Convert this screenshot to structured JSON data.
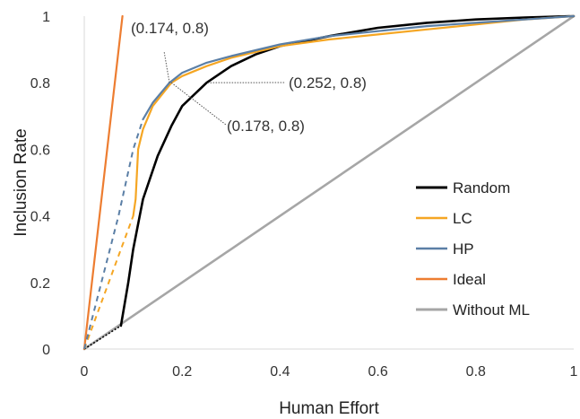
{
  "chart_data": {
    "type": "line",
    "title": "",
    "xlabel": "Human Effort",
    "ylabel": "Inclusion Rate",
    "xlim": [
      0,
      1
    ],
    "ylim": [
      0,
      1
    ],
    "x_ticks": [
      "0",
      "0.2",
      "0.4",
      "0.6",
      "0.8",
      "1"
    ],
    "y_ticks": [
      "0",
      "0.2",
      "0.4",
      "0.6",
      "0.8",
      "1"
    ],
    "grid": false,
    "legend_position": "lower-right",
    "series": [
      {
        "name": "Random",
        "color": "#000000",
        "dashed_segment": [
          [
            0.0,
            0.0
          ],
          [
            0.075,
            0.07
          ]
        ],
        "points": [
          [
            0.075,
            0.07
          ],
          [
            0.09,
            0.2
          ],
          [
            0.1,
            0.3
          ],
          [
            0.12,
            0.45
          ],
          [
            0.15,
            0.58
          ],
          [
            0.178,
            0.67
          ],
          [
            0.2,
            0.73
          ],
          [
            0.25,
            0.8
          ],
          [
            0.3,
            0.85
          ],
          [
            0.35,
            0.885
          ],
          [
            0.4,
            0.91
          ],
          [
            0.5,
            0.94
          ],
          [
            0.6,
            0.965
          ],
          [
            0.7,
            0.98
          ],
          [
            0.8,
            0.99
          ],
          [
            0.9,
            0.996
          ],
          [
            1.0,
            1.0
          ]
        ]
      },
      {
        "name": "LC",
        "color": "#F5A623",
        "dashed_segment": [
          [
            0.0,
            0.0
          ],
          [
            0.1,
            0.4
          ]
        ],
        "points": [
          [
            0.1,
            0.4
          ],
          [
            0.105,
            0.45
          ],
          [
            0.11,
            0.6
          ],
          [
            0.12,
            0.66
          ],
          [
            0.14,
            0.73
          ],
          [
            0.178,
            0.8
          ],
          [
            0.2,
            0.82
          ],
          [
            0.25,
            0.85
          ],
          [
            0.3,
            0.875
          ],
          [
            0.4,
            0.91
          ],
          [
            0.5,
            0.93
          ],
          [
            0.6,
            0.945
          ],
          [
            0.7,
            0.96
          ],
          [
            0.8,
            0.975
          ],
          [
            0.9,
            0.99
          ],
          [
            1.0,
            1.0
          ]
        ]
      },
      {
        "name": "HP",
        "color": "#5B7FA6",
        "dashed_segment": [
          [
            0.0,
            0.0
          ],
          [
            0.07,
            0.4
          ],
          [
            0.1,
            0.6
          ],
          [
            0.12,
            0.69
          ]
        ],
        "points": [
          [
            0.12,
            0.69
          ],
          [
            0.14,
            0.74
          ],
          [
            0.174,
            0.8
          ],
          [
            0.2,
            0.83
          ],
          [
            0.25,
            0.86
          ],
          [
            0.3,
            0.88
          ],
          [
            0.4,
            0.915
          ],
          [
            0.5,
            0.94
          ],
          [
            0.6,
            0.955
          ],
          [
            0.7,
            0.97
          ],
          [
            0.8,
            0.98
          ],
          [
            0.9,
            0.99
          ],
          [
            1.0,
            1.0
          ]
        ]
      },
      {
        "name": "Ideal",
        "color": "#ED7D31",
        "points": [
          [
            0.0,
            0.0
          ],
          [
            0.078,
            1.0
          ]
        ]
      },
      {
        "name": "Without ML",
        "color": "#A6A6A6",
        "points": [
          [
            0.0,
            0.0
          ],
          [
            1.0,
            1.0
          ]
        ]
      }
    ],
    "annotations": [
      {
        "text": "(0.174, 0.8)",
        "point": [
          0.174,
          0.8
        ]
      },
      {
        "text": "(0.252, 0.8)",
        "point": [
          0.252,
          0.8
        ]
      },
      {
        "text": "(0.178, 0.8)",
        "point": [
          0.178,
          0.8
        ]
      }
    ]
  }
}
